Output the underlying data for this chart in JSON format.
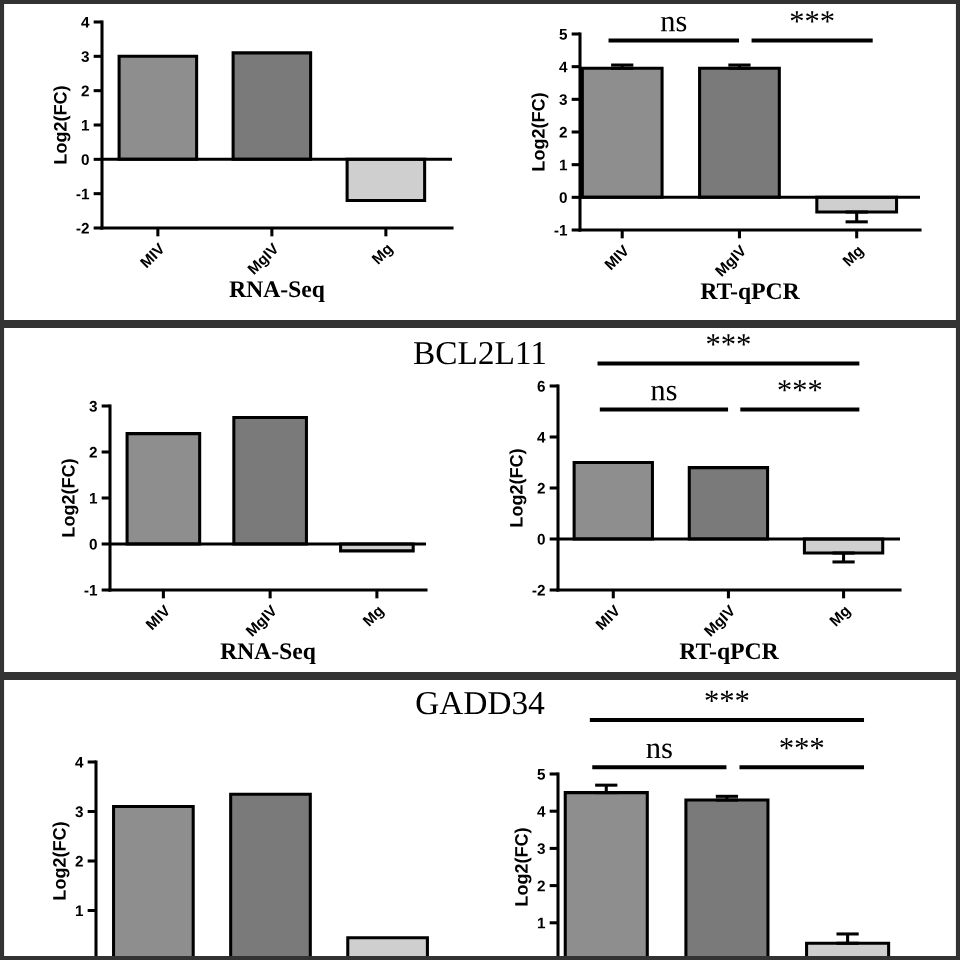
{
  "chart_data": [
    {
      "type": "bar",
      "ylabel": "Log2(FC)",
      "xlabel": "RNA-Seq",
      "categories": [
        "MIV",
        "MgIV",
        "Mg"
      ],
      "values": [
        3.0,
        3.1,
        -1.2
      ],
      "colors": [
        "#8e8e8e",
        "#7a7a7a",
        "#cfcfcf"
      ],
      "ylim": [
        -2,
        4
      ],
      "yticks": [
        -2,
        -1,
        0,
        1,
        2,
        3,
        4
      ],
      "ref_lines": [
        {
          "axis": "y",
          "value": 0,
          "color": "#000000"
        }
      ]
    },
    {
      "type": "bar",
      "ylabel": "Log2(FC)",
      "xlabel": "RT-qPCR",
      "categories": [
        "MIV",
        "MgIV",
        "Mg"
      ],
      "values": [
        3.95,
        3.95,
        -0.45
      ],
      "errors": [
        [
          3.95,
          4.05
        ],
        [
          3.95,
          4.05
        ],
        [
          -0.75,
          -0.45
        ]
      ],
      "colors": [
        "#8e8e8e",
        "#7a7a7a",
        "#cfcfcf"
      ],
      "ylim": [
        -1,
        5
      ],
      "yticks": [
        -1,
        0,
        1,
        2,
        3,
        4,
        5
      ],
      "ref_lines": [
        {
          "axis": "y",
          "value": 0,
          "color": "#000000"
        }
      ],
      "annotations": [
        "ns",
        "***"
      ]
    },
    {
      "type": "bar",
      "title": "BCL2L11",
      "ylabel": "Log2(FC)",
      "xlabel": "RNA-Seq",
      "categories": [
        "MIV",
        "MgIV",
        "Mg"
      ],
      "values": [
        2.4,
        2.75,
        -0.15
      ],
      "colors": [
        "#8e8e8e",
        "#7a7a7a",
        "#cfcfcf"
      ],
      "ylim": [
        -1,
        3
      ],
      "yticks": [
        -1,
        0,
        1,
        2,
        3
      ],
      "ref_lines": [
        {
          "axis": "y",
          "value": 0,
          "color": "#000000"
        }
      ]
    },
    {
      "type": "bar",
      "ylabel": "Log2(FC)",
      "xlabel": "RT-qPCR",
      "categories": [
        "MIV",
        "MgIV",
        "Mg"
      ],
      "values": [
        3.0,
        2.8,
        -0.55
      ],
      "errors": [
        null,
        null,
        [
          -0.9,
          -0.55
        ]
      ],
      "colors": [
        "#8e8e8e",
        "#7a7a7a",
        "#cfcfcf"
      ],
      "ylim": [
        -2,
        6
      ],
      "yticks": [
        -2,
        0,
        2,
        4,
        6
      ],
      "ref_lines": [
        {
          "axis": "y",
          "value": 0,
          "color": "#000000"
        }
      ],
      "annotations": [
        "***",
        "ns",
        "***"
      ]
    },
    {
      "type": "bar",
      "title": "GADD34",
      "ylabel": "Log2(FC)",
      "categories": [
        null,
        null,
        null
      ],
      "values": [
        3.1,
        3.35,
        0.45
      ],
      "colors": [
        "#8e8e8e",
        "#7a7a7a",
        "#cfcfcf"
      ],
      "ylim": [
        0,
        4
      ],
      "yticks": [
        1,
        2,
        3,
        4
      ],
      "tick_labels": "y"
    },
    {
      "type": "bar",
      "ylabel": "Log2(FC)",
      "categories": [
        null,
        null,
        null
      ],
      "values": [
        4.5,
        4.3,
        0.45
      ],
      "errors": [
        [
          4.5,
          4.7
        ],
        [
          4.3,
          4.4
        ],
        [
          0.45,
          0.7
        ]
      ],
      "colors": [
        "#8e8e8e",
        "#7a7a7a",
        "#cfcfcf"
      ],
      "ylim": [
        0,
        5
      ],
      "yticks": [
        1,
        2,
        3,
        4,
        5
      ],
      "tick_labels": "y",
      "annotations": [
        "***",
        "ns",
        "***"
      ]
    }
  ]
}
